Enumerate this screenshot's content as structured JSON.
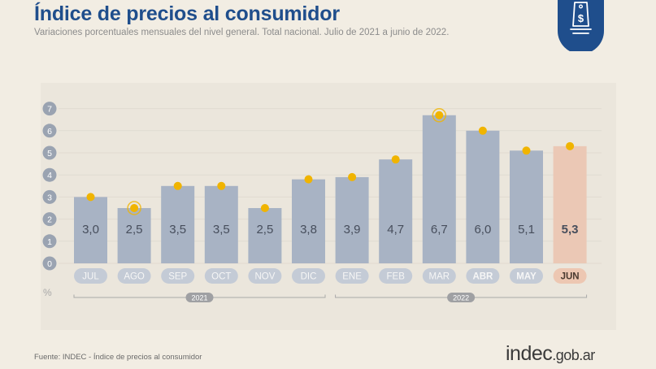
{
  "header": {
    "title": "Índice de precios al consumidor",
    "subtitle": "Variaciones porcentuales mensuales del nivel general. Total nacional. Julio de 2021 a junio de 2022."
  },
  "footer": {
    "source": "Fuente: INDEC - Índice de precios al consumidor",
    "brand_main": "indec",
    "brand_domain": ".gob.ar"
  },
  "logo": {
    "icon": "price-tag-dollar-icon",
    "color": "#1f4e8c"
  },
  "colors": {
    "bar": "#a8b3c4",
    "bar_highlight": "#ebc8b5",
    "dot": "#f0b400",
    "title": "#1f4e8c",
    "month_pill": "#c4cbd6",
    "month_pill_highlight": "#edc7b2"
  },
  "chart_data": {
    "type": "bar",
    "categories": [
      "JUL",
      "AGO",
      "SEP",
      "OCT",
      "NOV",
      "DIC",
      "ENE",
      "FEB",
      "MAR",
      "ABR",
      "MAY",
      "JUN"
    ],
    "values": [
      3.0,
      2.5,
      3.5,
      3.5,
      2.5,
      3.8,
      3.9,
      4.7,
      6.7,
      6.0,
      5.1,
      5.3
    ],
    "value_labels": [
      "3,0",
      "2,5",
      "3,5",
      "3,5",
      "2,5",
      "3,8",
      "3,9",
      "4,7",
      "6,7",
      "6,0",
      "5,1",
      "5,3"
    ],
    "highlighted_index": 11,
    "bold_months": [
      "ABR",
      "MAY",
      "JUN"
    ],
    "haloed_dots": [
      1,
      8
    ],
    "y_ticks": [
      "0",
      "1",
      "2",
      "3",
      "4",
      "5",
      "6",
      "7"
    ],
    "ylim": [
      0,
      7
    ],
    "ylabel": "%",
    "year_groups": [
      {
        "label": "2021",
        "start": 0,
        "end": 5
      },
      {
        "label": "2022",
        "start": 6,
        "end": 11
      }
    ],
    "grid": true
  }
}
